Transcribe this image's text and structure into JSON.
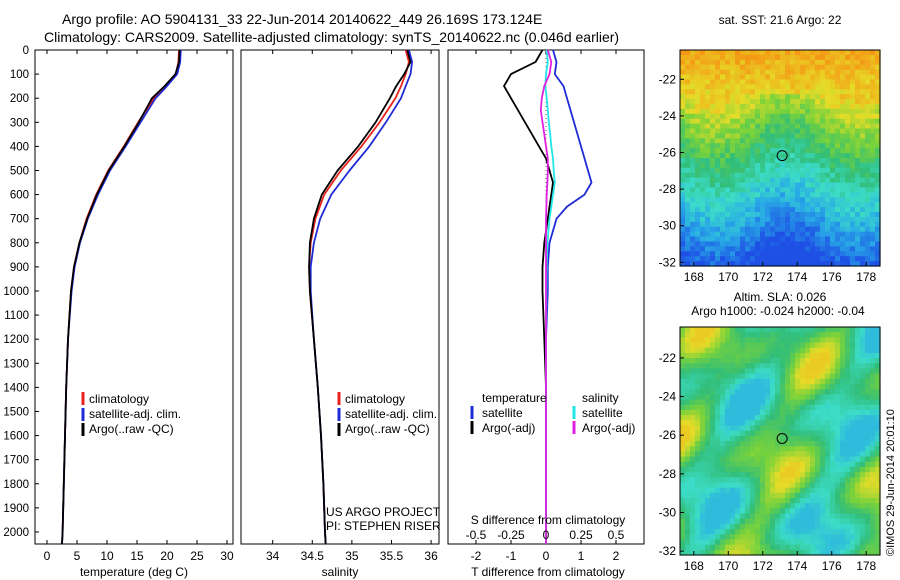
{
  "header": {
    "line1": "Argo profile: AO 5904131_33 22-Jun-2014 20140622_449 26.169S 173.124E",
    "line2": "Climatology: CARS2009. Satellite-adjusted climatology: synTS_20140622.nc (0.046d earlier)"
  },
  "colors": {
    "climatology": "#e8231c",
    "satellite": "#1f2bd6",
    "argo": "#000000",
    "sal_satellite": "#22e6e6",
    "sal_argo": "#e020e0"
  },
  "chart_data": [
    {
      "type": "line",
      "id": "temperature",
      "xlabel": "temperature (deg C)",
      "xlim": [
        -2,
        31
      ],
      "xticks": [
        0,
        5,
        10,
        15,
        20,
        25,
        30
      ],
      "ylim": [
        2050,
        0
      ],
      "yticks": [
        0,
        100,
        200,
        300,
        400,
        500,
        600,
        700,
        800,
        900,
        1000,
        1100,
        1200,
        1300,
        1400,
        1500,
        1600,
        1700,
        1800,
        1900,
        2000
      ],
      "legend": [
        "climatology",
        "satellite-adj. clim.",
        "Argo(..raw -QC)"
      ],
      "series": [
        {
          "name": "climatology",
          "color": "climatology",
          "depth": [
            0,
            50,
            100,
            150,
            200,
            300,
            400,
            500,
            600,
            700,
            800,
            900,
            1000,
            1200,
            1400,
            1600,
            1800,
            2000,
            2050
          ],
          "values": [
            22.0,
            21.9,
            21.5,
            19.8,
            17.8,
            15.2,
            12.8,
            10.2,
            8.2,
            6.6,
            5.4,
            4.5,
            4.0,
            3.5,
            3.2,
            3.0,
            2.8,
            2.6,
            2.5
          ]
        },
        {
          "name": "satellite-adj. clim.",
          "color": "satellite",
          "depth": [
            0,
            50,
            100,
            150,
            200,
            300,
            400,
            500,
            600,
            700,
            800,
            900,
            1000,
            1200,
            1400,
            1600,
            1800,
            2000,
            2050
          ],
          "values": [
            22.3,
            22.2,
            21.7,
            20.0,
            18.1,
            15.6,
            13.1,
            10.5,
            8.5,
            6.8,
            5.5,
            4.6,
            4.1,
            3.5,
            3.2,
            3.0,
            2.8,
            2.6,
            2.5
          ]
        },
        {
          "name": "Argo(..raw -QC)",
          "color": "argo",
          "depth": [
            0,
            50,
            100,
            150,
            200,
            300,
            400,
            500,
            600,
            700,
            800,
            900,
            1000,
            1200,
            1400,
            1600,
            1800,
            2000,
            2050
          ],
          "values": [
            22.1,
            22.0,
            21.4,
            19.6,
            17.5,
            15.3,
            12.9,
            10.3,
            8.3,
            6.7,
            5.4,
            4.5,
            4.0,
            3.5,
            3.2,
            3.0,
            2.8,
            2.6,
            2.5
          ]
        }
      ]
    },
    {
      "type": "line",
      "id": "salinity",
      "xlabel": "salinity",
      "xlim": [
        33.6,
        36.1
      ],
      "xticks": [
        34,
        34.5,
        35,
        35.5,
        36
      ],
      "ylim": [
        2050,
        0
      ],
      "legend": [
        "climatology",
        "satellite-adj. clim.",
        "Argo(..raw -QC)"
      ],
      "annotation": [
        "US ARGO PROJECT",
        "PI: STEPHEN RISER"
      ],
      "series": [
        {
          "name": "climatology",
          "color": "climatology",
          "depth": [
            0,
            50,
            100,
            150,
            200,
            300,
            400,
            500,
            600,
            700,
            800,
            900,
            1000,
            1200,
            1400,
            1600,
            1800,
            2000,
            2050
          ],
          "values": [
            35.68,
            35.72,
            35.68,
            35.62,
            35.55,
            35.35,
            35.12,
            34.86,
            34.65,
            34.54,
            34.48,
            34.46,
            34.47,
            34.52,
            34.57,
            34.61,
            34.64,
            34.66,
            34.67
          ]
        },
        {
          "name": "satellite-adj. clim.",
          "color": "satellite",
          "depth": [
            0,
            50,
            100,
            150,
            200,
            300,
            400,
            500,
            600,
            700,
            800,
            900,
            1000,
            1200,
            1400,
            1600,
            1800,
            2000,
            2050
          ],
          "values": [
            35.72,
            35.76,
            35.74,
            35.68,
            35.62,
            35.43,
            35.22,
            34.97,
            34.74,
            34.6,
            34.52,
            34.48,
            34.48,
            34.52,
            34.57,
            34.61,
            34.64,
            34.66,
            34.67
          ]
        },
        {
          "name": "Argo(..raw -QC)",
          "color": "argo",
          "depth": [
            0,
            50,
            100,
            150,
            200,
            300,
            400,
            500,
            600,
            700,
            800,
            900,
            1000,
            1200,
            1400,
            1600,
            1800,
            2000,
            2050
          ],
          "values": [
            35.7,
            35.74,
            35.66,
            35.56,
            35.48,
            35.3,
            35.08,
            34.82,
            34.62,
            34.52,
            34.47,
            34.46,
            34.47,
            34.52,
            34.57,
            34.61,
            34.64,
            34.66,
            34.67
          ]
        }
      ]
    },
    {
      "type": "line",
      "id": "difference",
      "xlabel": "T difference from climatology",
      "xlabel_top": "S difference from climatology",
      "xlim": [
        -2.8,
        2.8
      ],
      "xticks": [
        -2,
        -1,
        0,
        1,
        2
      ],
      "xticks_s_labels": [
        "-0.5",
        "-0.25",
        "0",
        "0.25",
        "0.5"
      ],
      "ylim": [
        2050,
        0
      ],
      "legend_left": {
        "title": "temperature",
        "items": [
          "satellite",
          "Argo(-adj)"
        ]
      },
      "legend_right": {
        "title": "salinity",
        "items": [
          "satellite",
          "Argo(-adj)"
        ]
      },
      "series": [
        {
          "name": "satellite",
          "group": "temperature",
          "color": "satellite",
          "depth": [
            0,
            50,
            100,
            150,
            200,
            250,
            300,
            350,
            400,
            450,
            500,
            550,
            600,
            650,
            700,
            800,
            900,
            1000,
            1200,
            1400,
            1600,
            1800,
            2000,
            2050
          ],
          "values": [
            0.2,
            0.3,
            0.25,
            0.5,
            0.6,
            0.7,
            0.8,
            0.9,
            1.0,
            1.1,
            1.2,
            1.3,
            1.1,
            0.6,
            0.3,
            0.1,
            0.05,
            0.05,
            0.0,
            0.0,
            0.0,
            0.0,
            0.0,
            0.0
          ]
        },
        {
          "name": "Argo(-adj)",
          "group": "temperature",
          "color": "argo",
          "depth": [
            0,
            50,
            100,
            150,
            200,
            250,
            300,
            350,
            400,
            450,
            500,
            550,
            600,
            650,
            700,
            800,
            900,
            1000,
            1200,
            1400,
            1600,
            1800,
            2000,
            2050
          ],
          "values": [
            -0.1,
            -0.3,
            -1.0,
            -1.2,
            -1.0,
            -0.8,
            -0.6,
            -0.4,
            -0.2,
            0.0,
            0.1,
            0.2,
            0.15,
            0.1,
            0.05,
            -0.05,
            -0.1,
            -0.1,
            -0.05,
            0.0,
            0.0,
            0.0,
            0.0,
            0.0
          ]
        },
        {
          "name": "satellite",
          "group": "salinity",
          "color": "sal_satellite",
          "depth": [
            0,
            50,
            100,
            150,
            200,
            250,
            300,
            350,
            400,
            450,
            500,
            550,
            600,
            650,
            700,
            800,
            900,
            1000,
            1200,
            1400,
            1600,
            1800,
            2000,
            2050
          ],
          "values": [
            0.02,
            0.05,
            0.0,
            -0.02,
            0.02,
            0.05,
            0.08,
            0.12,
            0.15,
            0.2,
            0.22,
            0.25,
            0.2,
            0.15,
            0.1,
            0.04,
            0.02,
            0.01,
            0.0,
            0.0,
            0.0,
            0.0,
            0.0,
            0.0
          ]
        },
        {
          "name": "Argo(-adj)",
          "group": "salinity",
          "color": "sal_argo",
          "depth": [
            0,
            50,
            100,
            150,
            200,
            250,
            300,
            350,
            400,
            450,
            500,
            550,
            600,
            650,
            700,
            800,
            900,
            1000,
            1200,
            1400,
            1600,
            1800,
            2000,
            2050
          ],
          "values": [
            0.05,
            0.15,
            0.1,
            -0.05,
            -0.12,
            -0.15,
            -0.1,
            -0.05,
            0.0,
            0.05,
            0.05,
            0.04,
            0.02,
            0.01,
            0.0,
            0.0,
            0.0,
            0.0,
            0.0,
            0.0,
            0.0,
            0.0,
            0.0,
            0.0
          ]
        }
      ]
    },
    {
      "type": "heatmap",
      "id": "sst_map",
      "title": "sat. SST: 21.6 Argo: 22",
      "xlim": [
        167.2,
        178.8
      ],
      "xticks": [
        168,
        170,
        172,
        174,
        176,
        178
      ],
      "ylim": [
        -32.2,
        -20.4
      ],
      "yticks": [
        -22,
        -24,
        -26,
        -28,
        -30,
        -32
      ],
      "marker": {
        "lon": 173.124,
        "lat": -26.169
      }
    },
    {
      "type": "heatmap",
      "id": "sla_map",
      "title": "Altim. SLA: 0.026",
      "subtitle": "Argo h1000: -0.024 h2000: -0.04",
      "xlim": [
        167.2,
        178.8
      ],
      "xticks": [
        168,
        170,
        172,
        174,
        176,
        178
      ],
      "ylim": [
        -32.2,
        -20.4
      ],
      "yticks": [
        -22,
        -24,
        -26,
        -28,
        -30,
        -32
      ],
      "marker": {
        "lon": 173.124,
        "lat": -26.169
      }
    }
  ],
  "footer": {
    "stamp": "©IMOS 29-Jun-2014 20:01:10"
  }
}
